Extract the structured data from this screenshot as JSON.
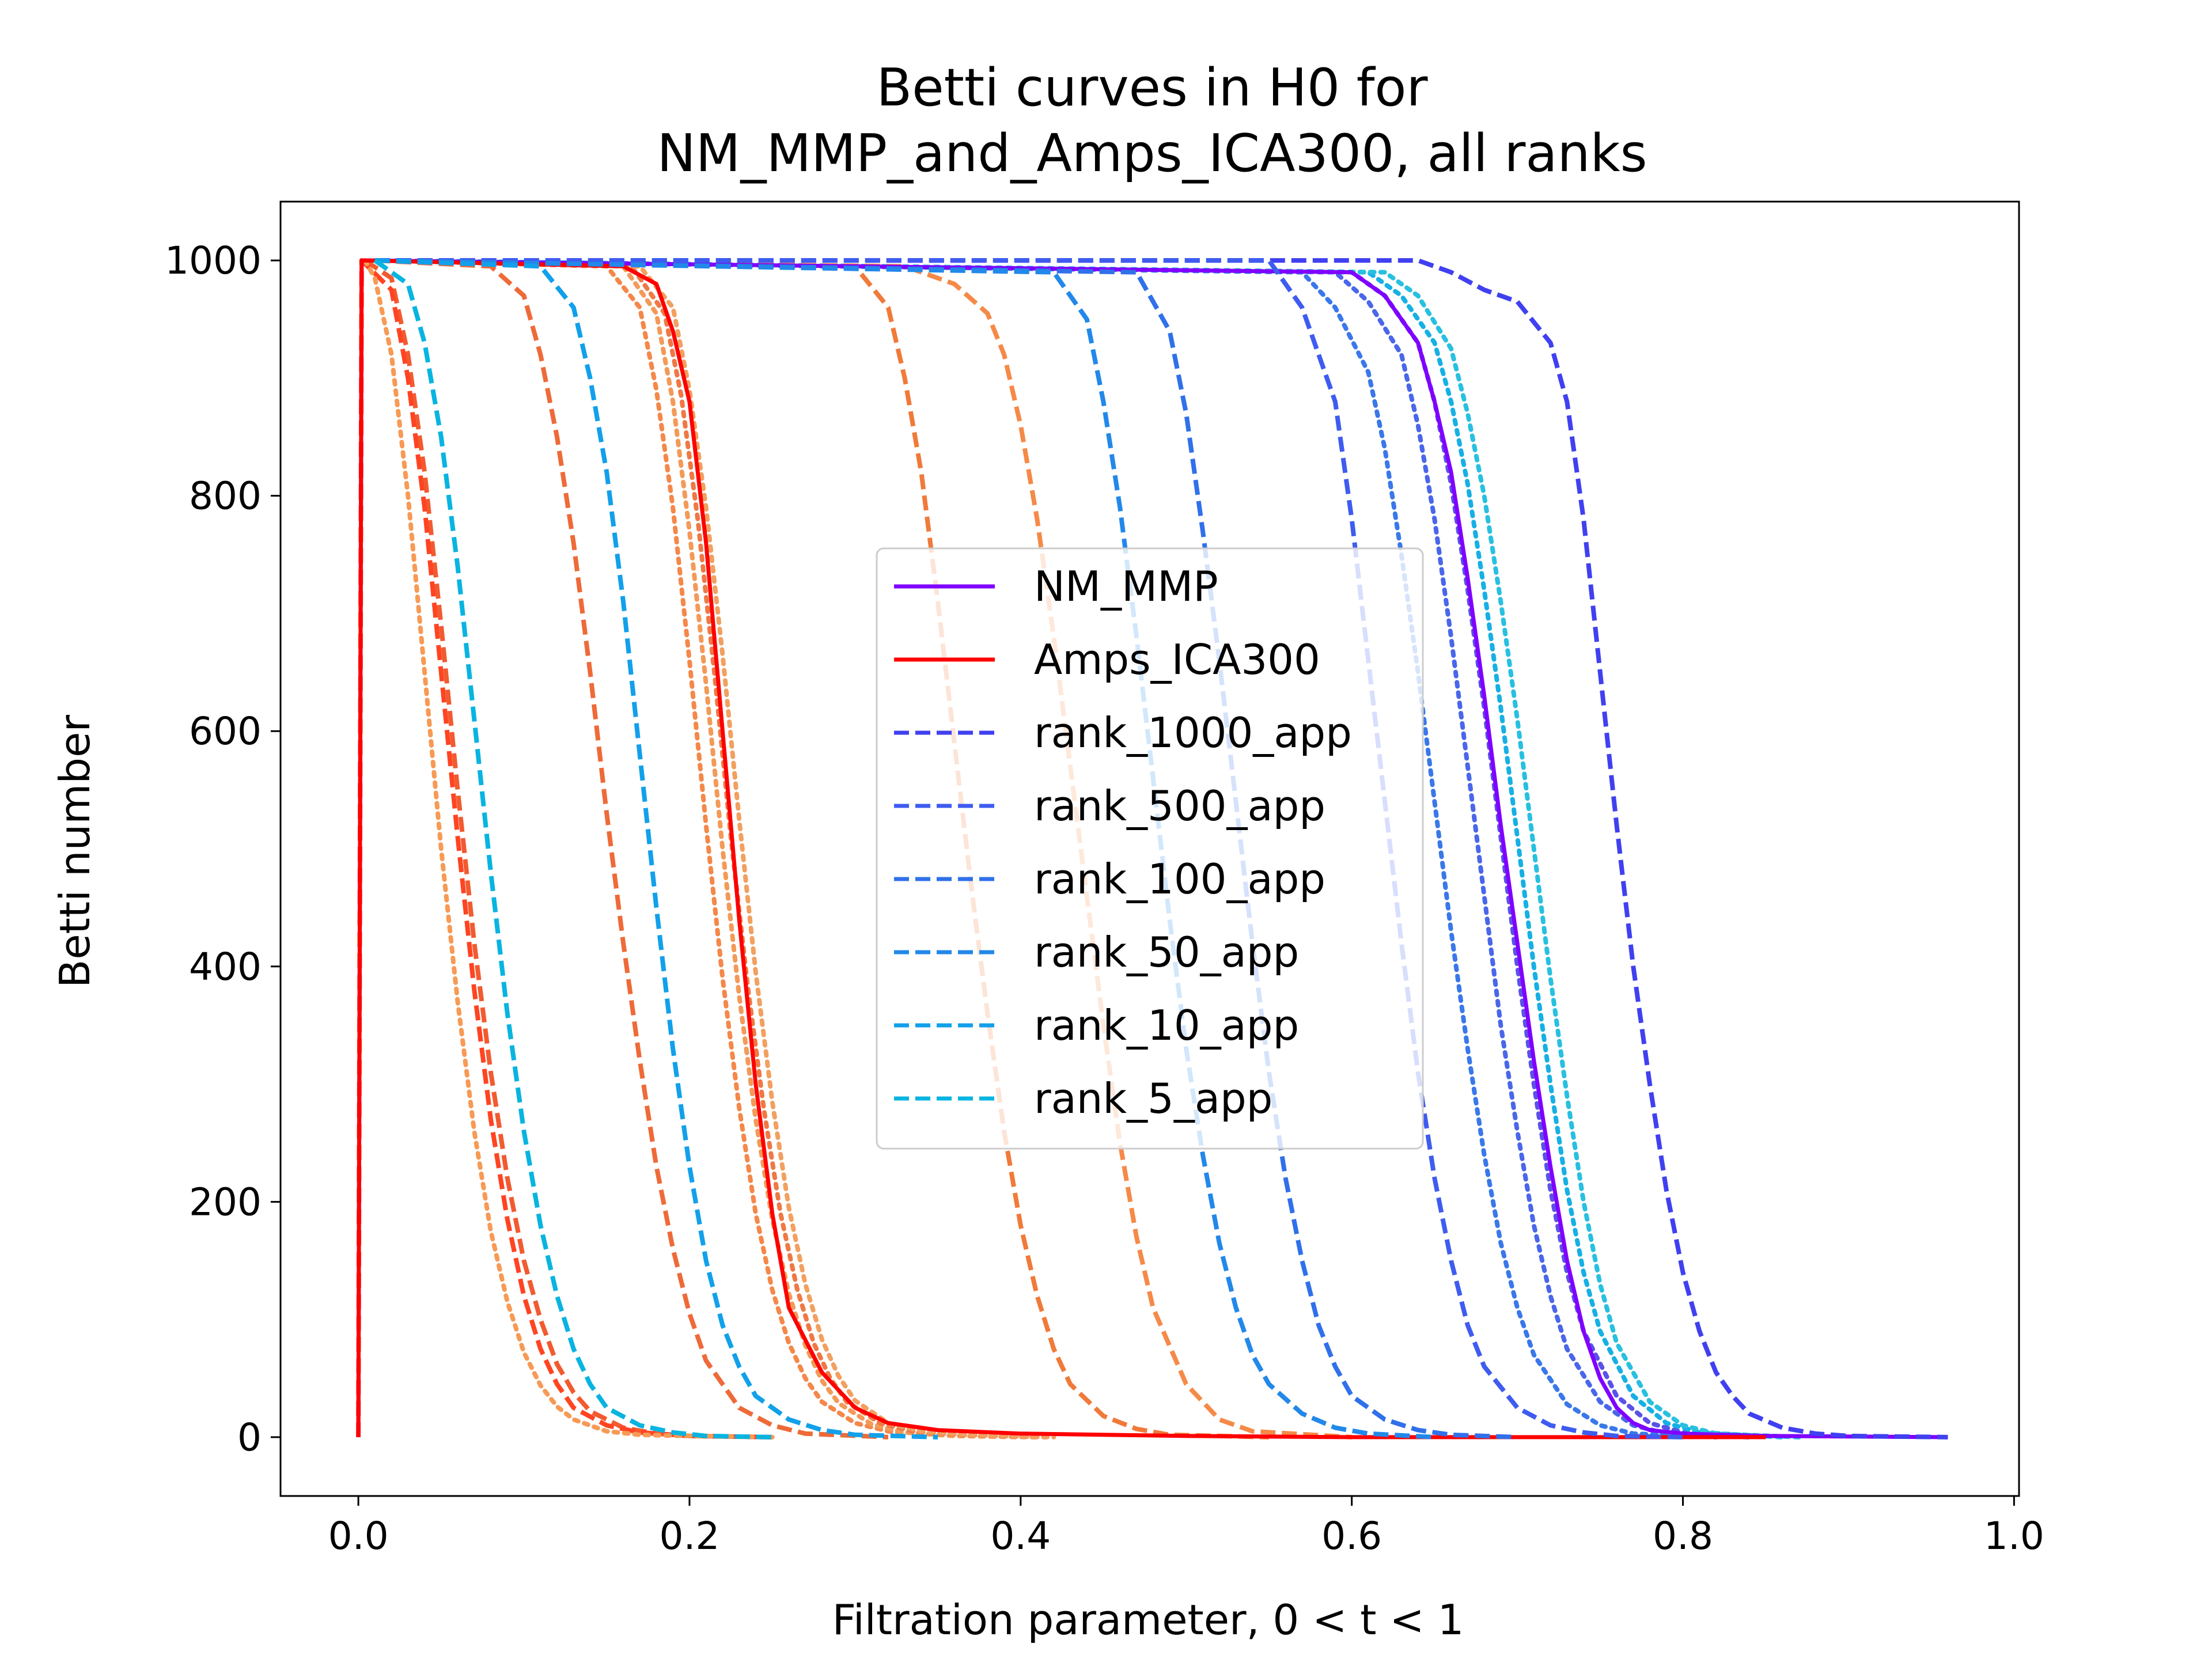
{
  "chart_data": {
    "type": "line",
    "title": [
      "Betti curves in H0 for",
      "NM_MMP_and_Amps_ICA300, all ranks"
    ],
    "xlabel": "Filtration parameter, 0 < t < 1",
    "ylabel": "Betti number",
    "xlim": [
      -0.047,
      1.003
    ],
    "ylim": [
      -50,
      1050
    ],
    "xticks": [
      "0.0",
      "0.2",
      "0.4",
      "0.6",
      "0.8",
      "1.0"
    ],
    "xtick_values": [
      0,
      0.2,
      0.4,
      0.6,
      0.8,
      1.0
    ],
    "yticks": [
      "0",
      "200",
      "400",
      "600",
      "800",
      "1000"
    ],
    "ytick_values": [
      0,
      200,
      400,
      600,
      800,
      1000
    ],
    "grid": false,
    "legend_position": "center",
    "series": [
      {
        "name": "NM_MMP",
        "color": "#8000ff",
        "style": "solid",
        "legend": true,
        "x": [
          0,
          0.002,
          0.004,
          0.6,
          0.62,
          0.64,
          0.65,
          0.66,
          0.67,
          0.68,
          0.69,
          0.7,
          0.71,
          0.72,
          0.73,
          0.74,
          0.75,
          0.76,
          0.77,
          0.78,
          0.8,
          0.85,
          0.96
        ],
        "y": [
          0,
          1000,
          1000,
          990,
          970,
          930,
          880,
          820,
          730,
          630,
          520,
          420,
          320,
          230,
          150,
          90,
          50,
          25,
          12,
          6,
          3,
          1,
          0
        ]
      },
      {
        "name": "Amps_ICA300",
        "color": "#ff0000",
        "style": "solid",
        "legend": true,
        "x": [
          0,
          0.002,
          0.004,
          0.16,
          0.18,
          0.19,
          0.2,
          0.21,
          0.22,
          0.23,
          0.24,
          0.25,
          0.26,
          0.28,
          0.3,
          0.32,
          0.35,
          0.4,
          0.5,
          0.6,
          0.7,
          0.8,
          0.85
        ],
        "y": [
          0,
          1000,
          1000,
          995,
          980,
          940,
          880,
          760,
          600,
          440,
          300,
          190,
          110,
          55,
          25,
          12,
          6,
          3,
          1,
          0,
          0,
          0,
          0
        ]
      },
      {
        "name": "rank_1000_app",
        "color": "#4040f0",
        "style": "dashed",
        "legend": true,
        "x": [
          0.01,
          0.64,
          0.66,
          0.68,
          0.7,
          0.72,
          0.73,
          0.74,
          0.75,
          0.76,
          0.77,
          0.78,
          0.79,
          0.8,
          0.81,
          0.82,
          0.83,
          0.84,
          0.86,
          0.88,
          0.9,
          0.96
        ],
        "y": [
          1000,
          1000,
          990,
          975,
          965,
          930,
          880,
          780,
          650,
          520,
          400,
          300,
          210,
          140,
          90,
          55,
          35,
          20,
          8,
          3,
          1,
          0
        ]
      },
      {
        "name": "rank_500_app",
        "color": "#3f5cf0",
        "style": "dashed",
        "legend": true,
        "x": [
          0.01,
          0.55,
          0.57,
          0.59,
          0.6,
          0.61,
          0.62,
          0.63,
          0.64,
          0.65,
          0.66,
          0.67,
          0.68,
          0.7,
          0.72,
          0.74,
          0.76,
          0.8
        ],
        "y": [
          1000,
          1000,
          960,
          880,
          780,
          660,
          540,
          420,
          310,
          220,
          150,
          95,
          60,
          25,
          10,
          4,
          1,
          0
        ]
      },
      {
        "name": "rank_100_app",
        "color": "#3070ea",
        "style": "dashed",
        "legend": true,
        "x": [
          0.01,
          0.47,
          0.49,
          0.5,
          0.51,
          0.52,
          0.53,
          0.54,
          0.55,
          0.56,
          0.57,
          0.58,
          0.59,
          0.6,
          0.62,
          0.64,
          0.66,
          0.7
        ],
        "y": [
          1000,
          990,
          940,
          870,
          770,
          660,
          540,
          420,
          310,
          220,
          150,
          95,
          60,
          35,
          15,
          6,
          2,
          0
        ]
      },
      {
        "name": "rank_50_app",
        "color": "#2288ea",
        "style": "dashed",
        "legend": true,
        "x": [
          0.01,
          0.42,
          0.44,
          0.45,
          0.46,
          0.47,
          0.48,
          0.49,
          0.5,
          0.51,
          0.52,
          0.53,
          0.54,
          0.55,
          0.57,
          0.59,
          0.61,
          0.65
        ],
        "y": [
          1000,
          990,
          950,
          880,
          790,
          680,
          560,
          440,
          330,
          240,
          165,
          110,
          70,
          45,
          20,
          8,
          3,
          0
        ]
      },
      {
        "name": "rank_10_app",
        "color": "#12a0ea",
        "style": "dashed",
        "legend": true,
        "x": [
          0.01,
          0.11,
          0.13,
          0.14,
          0.15,
          0.16,
          0.17,
          0.18,
          0.19,
          0.2,
          0.21,
          0.22,
          0.23,
          0.24,
          0.26,
          0.28,
          0.3,
          0.35
        ],
        "y": [
          1000,
          995,
          960,
          900,
          820,
          710,
          580,
          450,
          330,
          230,
          150,
          95,
          60,
          35,
          15,
          6,
          2,
          0
        ]
      },
      {
        "name": "rank_5_app",
        "color": "#08b4e0",
        "style": "dashed",
        "legend": true,
        "x": [
          0.01,
          0.03,
          0.04,
          0.05,
          0.06,
          0.07,
          0.08,
          0.09,
          0.1,
          0.11,
          0.12,
          0.13,
          0.14,
          0.15,
          0.17,
          0.19,
          0.21,
          0.25
        ],
        "y": [
          1000,
          980,
          930,
          850,
          740,
          610,
          480,
          360,
          260,
          180,
          120,
          75,
          45,
          25,
          10,
          4,
          1,
          0
        ]
      },
      {
        "name": "",
        "color": "#5a52e8",
        "style": "dotted",
        "legend": false,
        "x": [
          0.01,
          0.6,
          0.62,
          0.64,
          0.65,
          0.66,
          0.67,
          0.68,
          0.69,
          0.7,
          0.71,
          0.72,
          0.73,
          0.74,
          0.76,
          0.78,
          0.8,
          0.85
        ],
        "y": [
          1000,
          990,
          970,
          930,
          880,
          810,
          720,
          620,
          510,
          400,
          300,
          210,
          140,
          90,
          35,
          12,
          4,
          0
        ]
      },
      {
        "name": "",
        "color": "#4a66ea",
        "style": "dotted",
        "legend": false,
        "x": [
          0.01,
          0.59,
          0.61,
          0.63,
          0.64,
          0.65,
          0.66,
          0.67,
          0.68,
          0.69,
          0.7,
          0.71,
          0.72,
          0.73,
          0.75,
          0.77,
          0.79,
          0.84
        ],
        "y": [
          1000,
          990,
          965,
          920,
          860,
          780,
          680,
          570,
          460,
          350,
          260,
          180,
          120,
          75,
          30,
          10,
          3,
          0
        ]
      },
      {
        "name": "",
        "color": "#3a78ea",
        "style": "dotted",
        "legend": false,
        "x": [
          0.01,
          0.57,
          0.59,
          0.61,
          0.62,
          0.63,
          0.64,
          0.65,
          0.66,
          0.67,
          0.68,
          0.69,
          0.7,
          0.71,
          0.73,
          0.75,
          0.77,
          0.82
        ],
        "y": [
          1000,
          990,
          960,
          905,
          840,
          750,
          650,
          540,
          430,
          330,
          240,
          165,
          110,
          70,
          28,
          10,
          3,
          0
        ]
      },
      {
        "name": "",
        "color": "#16b0e4",
        "style": "dotted",
        "legend": false,
        "x": [
          0.01,
          0.61,
          0.63,
          0.65,
          0.66,
          0.67,
          0.68,
          0.69,
          0.7,
          0.71,
          0.72,
          0.73,
          0.74,
          0.75,
          0.77,
          0.79,
          0.81,
          0.86
        ],
        "y": [
          1000,
          990,
          970,
          930,
          880,
          810,
          720,
          620,
          510,
          400,
          300,
          210,
          140,
          90,
          35,
          12,
          4,
          0
        ]
      },
      {
        "name": "",
        "color": "#28c0e0",
        "style": "dotted",
        "legend": false,
        "x": [
          0.01,
          0.62,
          0.64,
          0.66,
          0.67,
          0.68,
          0.69,
          0.7,
          0.71,
          0.72,
          0.73,
          0.74,
          0.75,
          0.76,
          0.78,
          0.8,
          0.82,
          0.87
        ],
        "y": [
          1000,
          990,
          970,
          925,
          870,
          800,
          710,
          610,
          500,
          390,
          290,
          200,
          130,
          80,
          30,
          10,
          3,
          0
        ]
      },
      {
        "name": "",
        "color": "#f07a3a",
        "style": "dashed",
        "legend": false,
        "x": [
          0.01,
          0.3,
          0.32,
          0.33,
          0.34,
          0.35,
          0.36,
          0.37,
          0.38,
          0.39,
          0.4,
          0.41,
          0.42,
          0.43,
          0.45,
          0.47,
          0.49,
          0.55
        ],
        "y": [
          1000,
          995,
          960,
          900,
          820,
          710,
          590,
          470,
          360,
          260,
          180,
          120,
          75,
          45,
          18,
          7,
          2,
          0
        ]
      },
      {
        "name": "",
        "color": "#f58a48",
        "style": "dashed",
        "legend": false,
        "x": [
          0.01,
          0.33,
          0.36,
          0.38,
          0.39,
          0.4,
          0.41,
          0.42,
          0.43,
          0.44,
          0.45,
          0.46,
          0.47,
          0.48,
          0.5,
          0.52,
          0.54,
          0.6
        ],
        "y": [
          1000,
          995,
          980,
          955,
          920,
          860,
          780,
          680,
          570,
          460,
          350,
          250,
          170,
          110,
          45,
          15,
          5,
          0
        ]
      },
      {
        "name": "",
        "color": "#ee6a38",
        "style": "dashed",
        "legend": false,
        "x": [
          0.01,
          0.08,
          0.1,
          0.11,
          0.12,
          0.13,
          0.14,
          0.15,
          0.16,
          0.17,
          0.18,
          0.19,
          0.2,
          0.21,
          0.23,
          0.25,
          0.27,
          0.32
        ],
        "y": [
          1000,
          995,
          970,
          920,
          850,
          760,
          650,
          530,
          420,
          320,
          230,
          160,
          105,
          65,
          25,
          10,
          3,
          0
        ]
      },
      {
        "name": "",
        "color": "#f25a30",
        "style": "dashed",
        "legend": false,
        "x": [
          0.004,
          0.02,
          0.03,
          0.04,
          0.05,
          0.06,
          0.07,
          0.08,
          0.09,
          0.1,
          0.11,
          0.12,
          0.13,
          0.14,
          0.16,
          0.18,
          0.2,
          0.25
        ],
        "y": [
          1000,
          985,
          920,
          820,
          690,
          550,
          420,
          310,
          220,
          150,
          100,
          62,
          38,
          22,
          8,
          3,
          1,
          0
        ]
      },
      {
        "name": "",
        "color": "#ff4422",
        "style": "dashed",
        "legend": false,
        "x": [
          0,
          0.002,
          0.02,
          0.03,
          0.04,
          0.05,
          0.06,
          0.07,
          0.08,
          0.09,
          0.1,
          0.11,
          0.12,
          0.13,
          0.15,
          0.17,
          0.2,
          0.25
        ],
        "y": [
          0,
          1000,
          975,
          900,
          790,
          650,
          510,
          380,
          270,
          185,
          120,
          75,
          45,
          25,
          10,
          4,
          1,
          0
        ]
      },
      {
        "name": "",
        "color": "#f79a55",
        "style": "dotted",
        "legend": false,
        "x": [
          0.004,
          0.01,
          0.02,
          0.03,
          0.04,
          0.05,
          0.06,
          0.07,
          0.08,
          0.09,
          0.1,
          0.11,
          0.12,
          0.13,
          0.15,
          0.17,
          0.2,
          0.25
        ],
        "y": [
          1000,
          985,
          920,
          800,
          650,
          500,
          370,
          260,
          175,
          115,
          72,
          44,
          26,
          15,
          5,
          2,
          1,
          0
        ]
      },
      {
        "name": "",
        "color": "#f4884a",
        "style": "dotted",
        "legend": false,
        "x": [
          0.01,
          0.15,
          0.17,
          0.18,
          0.19,
          0.2,
          0.21,
          0.22,
          0.23,
          0.24,
          0.25,
          0.26,
          0.27,
          0.28,
          0.3,
          0.32,
          0.35,
          0.4
        ],
        "y": [
          1000,
          995,
          960,
          890,
          790,
          660,
          520,
          390,
          280,
          190,
          125,
          80,
          50,
          30,
          12,
          5,
          2,
          0
        ]
      },
      {
        "name": "",
        "color": "#f39a58",
        "style": "dotted",
        "legend": false,
        "x": [
          0.01,
          0.16,
          0.18,
          0.19,
          0.2,
          0.21,
          0.22,
          0.23,
          0.24,
          0.25,
          0.26,
          0.27,
          0.28,
          0.29,
          0.31,
          0.33,
          0.36,
          0.41
        ],
        "y": [
          1000,
          995,
          955,
          880,
          770,
          640,
          500,
          375,
          270,
          185,
          122,
          78,
          48,
          29,
          11,
          4,
          1,
          0
        ]
      },
      {
        "name": "",
        "color": "#ef7844",
        "style": "dotted",
        "legend": false,
        "x": [
          0.01,
          0.165,
          0.185,
          0.195,
          0.205,
          0.215,
          0.225,
          0.235,
          0.245,
          0.255,
          0.265,
          0.275,
          0.285,
          0.295,
          0.315,
          0.335,
          0.365,
          0.415
        ],
        "y": [
          1000,
          995,
          955,
          885,
          780,
          650,
          510,
          385,
          278,
          190,
          126,
          80,
          50,
          30,
          12,
          5,
          2,
          0
        ]
      },
      {
        "name": "",
        "color": "#f2a060",
        "style": "dotted",
        "legend": false,
        "x": [
          0.01,
          0.17,
          0.19,
          0.2,
          0.21,
          0.22,
          0.23,
          0.24,
          0.25,
          0.26,
          0.27,
          0.28,
          0.29,
          0.3,
          0.32,
          0.34,
          0.37,
          0.42
        ],
        "y": [
          1000,
          995,
          960,
          890,
          790,
          665,
          525,
          395,
          285,
          195,
          130,
          83,
          52,
          31,
          12,
          5,
          2,
          0
        ]
      }
    ]
  }
}
